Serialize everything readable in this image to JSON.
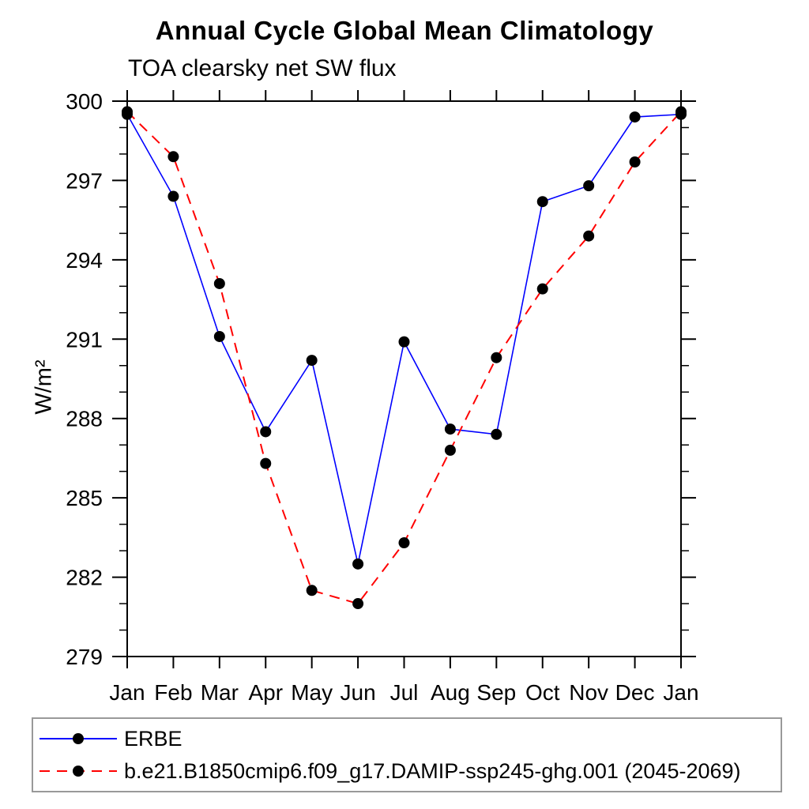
{
  "chart_data": {
    "type": "line",
    "title": "Annual Cycle Global Mean Climatology",
    "subtitle": "TOA clearsky net SW flux",
    "xlabel": "",
    "ylabel": "W/m²",
    "x_categories": [
      "Jan",
      "Feb",
      "Mar",
      "Apr",
      "May",
      "Jun",
      "Jul",
      "Aug",
      "Sep",
      "Oct",
      "Nov",
      "Dec",
      "Jan"
    ],
    "ylim": [
      279,
      300
    ],
    "y_major_step": 3,
    "y_minor_step": 1,
    "y_tick_labels": [
      "279",
      "282",
      "285",
      "288",
      "291",
      "294",
      "297",
      "300"
    ],
    "grid": false,
    "legend_position": "bottom",
    "marker_color": "#000000",
    "axis_color": "#000000",
    "series": [
      {
        "name": "ERBE",
        "color": "#0000ff",
        "line_style": "solid",
        "marker": "circle",
        "values": [
          299.5,
          296.4,
          291.1,
          287.5,
          290.2,
          282.5,
          290.9,
          287.6,
          287.4,
          296.2,
          296.8,
          299.4,
          299.5
        ]
      },
      {
        "name": "b.e21.B1850cmip6.f09_g17.DAMIP-ssp245-ghg.001 (2045-2069)",
        "color": "#ff0000",
        "line_style": "dashed",
        "marker": "circle",
        "values": [
          299.6,
          297.9,
          293.1,
          286.3,
          281.5,
          281.0,
          283.3,
          286.8,
          290.3,
          292.9,
          294.9,
          297.7,
          299.6
        ]
      }
    ]
  }
}
